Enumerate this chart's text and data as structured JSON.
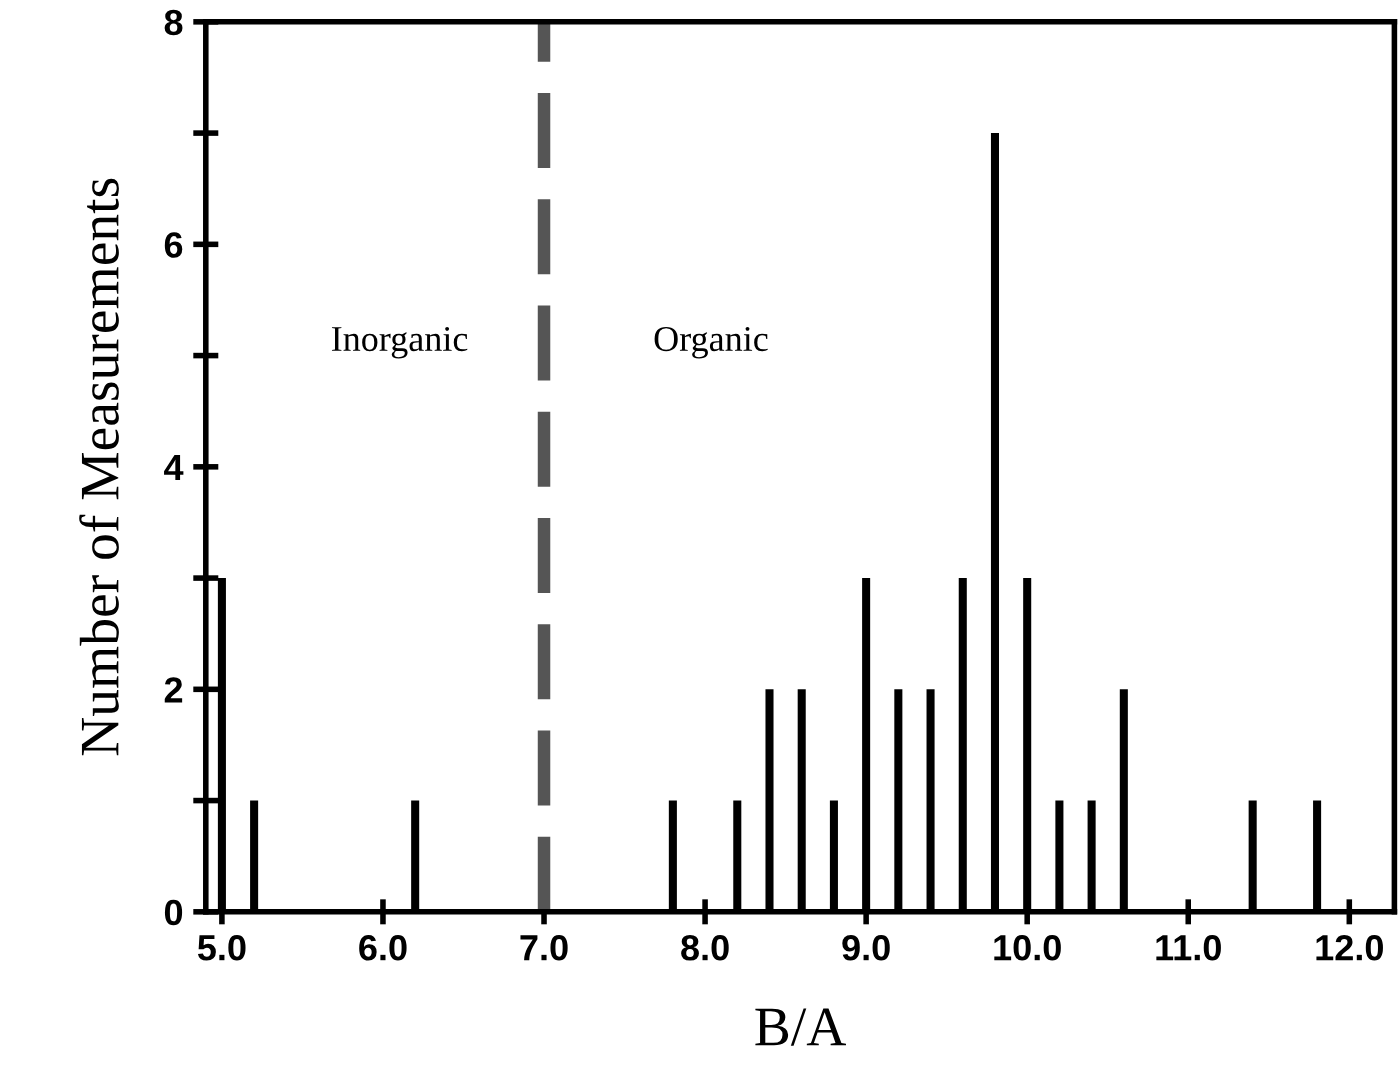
{
  "chart_data": {
    "type": "bar",
    "x": [
      5.0,
      5.2,
      6.2,
      7.8,
      8.2,
      8.4,
      8.6,
      8.8,
      9.0,
      9.2,
      9.4,
      9.6,
      9.8,
      10.0,
      10.2,
      10.4,
      10.6,
      11.4,
      11.8
    ],
    "values": [
      3,
      1,
      1,
      1,
      1,
      2,
      2,
      1,
      3,
      2,
      2,
      3,
      7,
      3,
      1,
      1,
      2,
      1,
      1
    ],
    "color": "#000000",
    "xlabel": "B/A",
    "ylabel": "Number of Measurements",
    "xlim": [
      4.9,
      12.28
    ],
    "ylim": [
      0,
      8
    ],
    "xticks": [
      {
        "value": 5,
        "label": "5.0"
      },
      {
        "value": 6,
        "label": "6.0"
      },
      {
        "value": 7,
        "label": "7.0"
      },
      {
        "value": 8,
        "label": "8.0"
      },
      {
        "value": 9,
        "label": "9.0"
      },
      {
        "value": 10,
        "label": "10.0"
      },
      {
        "value": 11,
        "label": "11.0"
      },
      {
        "value": 12,
        "label": "12.0"
      }
    ],
    "yticks": [
      0,
      {
        "value": 1,
        "label": null
      },
      2,
      {
        "value": 3,
        "label": null
      },
      4,
      {
        "value": 5,
        "label": null
      },
      6,
      {
        "value": 7,
        "label": null
      },
      8
    ],
    "ref_lines": [
      {
        "axis": "x",
        "value": 7.0,
        "color": "#555555",
        "line_style": "dashed"
      }
    ],
    "annotations": [
      "Inorganic",
      "Organic"
    ],
    "grid": false,
    "legend": false
  }
}
